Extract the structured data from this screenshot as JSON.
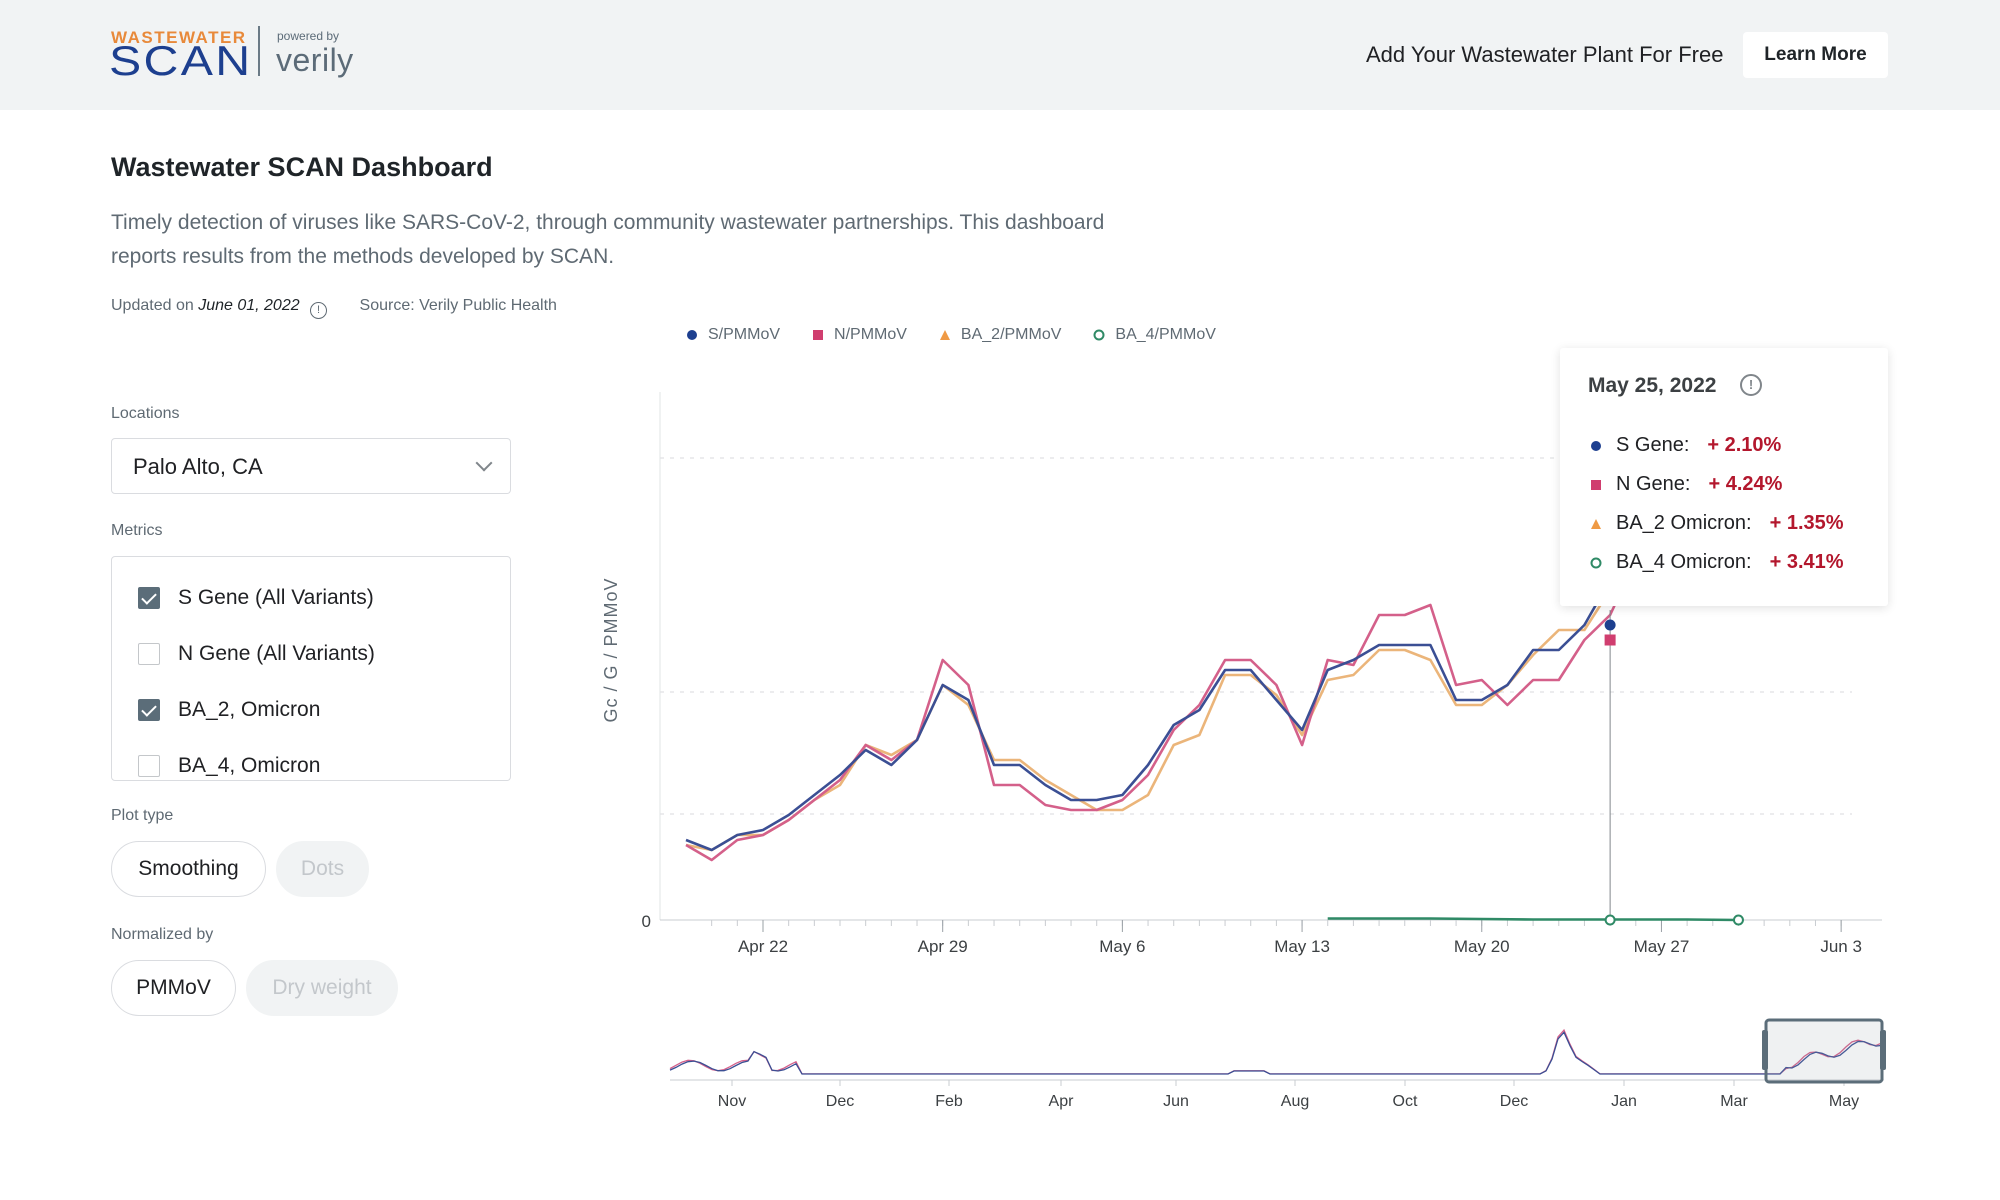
{
  "header": {
    "logo_top": "WASTEWATER",
    "logo_main": "SCAN",
    "powered_by": "powered by",
    "partner": "verily",
    "add_plant_text": "Add Your Wastewater Plant For Free",
    "learn_more_label": "Learn More"
  },
  "intro": {
    "title": "Wastewater SCAN Dashboard",
    "description": "Timely detection of viruses like SARS-CoV-2, through community wastewater partnerships. This dashboard reports results from the methods developed by SCAN.",
    "updated_prefix": "Updated on",
    "updated_date": "June 01, 2022",
    "source_prefix": "Source:",
    "source_link": "Verily Public Health"
  },
  "filters": {
    "locations_label": "Locations",
    "location_value": "Palo Alto, CA",
    "metrics_label": "Metrics",
    "metrics": [
      {
        "label": "S Gene (All Variants)",
        "checked": true
      },
      {
        "label": "N Gene (All Variants)",
        "checked": false
      },
      {
        "label": "BA_2, Omicron",
        "checked": true
      },
      {
        "label": "BA_4, Omicron",
        "checked": false
      }
    ],
    "plot_type_label": "Plot type",
    "plot_types": [
      "Smoothing",
      "Dots"
    ],
    "normalized_label": "Normalized by",
    "normalized_options": [
      "PMMoV",
      "Dry weight"
    ]
  },
  "colors": {
    "s_gene": "#3b4f94",
    "n_gene": "#d4608a",
    "ba2": "#ebb57a",
    "ba4": "#2f8a66",
    "positive": "#b3172d"
  },
  "chart_data": {
    "type": "line",
    "ylabel": "Gc / G / PMMoV",
    "y_ticks": [
      "0"
    ],
    "x_ticks": [
      "Apr 22",
      "Apr 29",
      "May  6",
      "May 13",
      "May 20",
      "May 27",
      "Jun  3"
    ],
    "x_day_start": "Apr 18",
    "legend": [
      "S/PMMoV",
      "N/PMMoV",
      "BA_2/PMMoV",
      "BA_4/PMMoV"
    ],
    "ylim": [
      0,
      100
    ],
    "series": [
      {
        "name": "S/PMMoV",
        "color": "#3b4f94",
        "x": [
          19,
          20,
          21,
          22,
          23,
          24,
          25,
          26,
          27,
          28,
          29,
          30,
          31,
          32,
          33,
          34,
          35,
          36,
          37,
          38,
          39,
          40,
          41,
          42,
          43,
          44,
          45,
          46,
          47,
          48,
          49,
          50,
          51,
          52,
          53,
          54,
          55,
          56,
          57,
          58
        ],
        "values": [
          16,
          14,
          17,
          18,
          21,
          25,
          29,
          34,
          31,
          36,
          47,
          44,
          31,
          31,
          27,
          24,
          24,
          25,
          31,
          39,
          42,
          50,
          50,
          44,
          38,
          50,
          52,
          55,
          55,
          55,
          44,
          44,
          47,
          54,
          54,
          59,
          68,
          74,
          78,
          80
        ]
      },
      {
        "name": "N/PMMoV",
        "color": "#d4608a",
        "x": [
          19,
          20,
          21,
          22,
          23,
          24,
          25,
          26,
          27,
          28,
          29,
          30,
          31,
          32,
          33,
          34,
          35,
          36,
          37,
          38,
          39,
          40,
          41,
          42,
          43,
          44,
          45,
          46,
          47,
          48,
          49,
          50,
          51,
          52,
          53,
          54,
          55,
          56,
          57,
          58
        ],
        "values": [
          15,
          12,
          16,
          17,
          20,
          24,
          28,
          35,
          32,
          36,
          52,
          47,
          27,
          27,
          23,
          22,
          22,
          24,
          29,
          38,
          43,
          52,
          52,
          47,
          35,
          52,
          51,
          61,
          61,
          63,
          47,
          48,
          43,
          48,
          48,
          56,
          61,
          72,
          78,
          82
        ]
      },
      {
        "name": "BA_2/PMMoV",
        "color": "#ebb57a",
        "x": [
          19,
          20,
          21,
          22,
          23,
          24,
          25,
          26,
          27,
          28,
          29,
          30,
          31,
          32,
          33,
          34,
          35,
          36,
          37,
          38,
          39,
          40,
          41,
          42,
          43,
          44,
          45,
          46,
          47,
          48,
          49,
          50,
          51,
          52,
          53,
          54,
          55,
          56,
          57,
          58
        ],
        "values": [
          15,
          14,
          17,
          17,
          20,
          24,
          27,
          35,
          33,
          36,
          47,
          43,
          32,
          32,
          28,
          25,
          22,
          22,
          25,
          35,
          37,
          49,
          49,
          45,
          37,
          48,
          49,
          54,
          54,
          52,
          43,
          43,
          47,
          53,
          58,
          58,
          66,
          72,
          78,
          84
        ]
      },
      {
        "name": "BA_4/PMMoV",
        "color": "#2f8a66",
        "x": [
          44,
          46,
          48,
          50,
          52,
          54,
          56,
          58,
          60
        ],
        "values": [
          0.3,
          0.3,
          0.3,
          0.2,
          0.1,
          0.1,
          0.1,
          0.1,
          0.0
        ]
      }
    ],
    "overview": {
      "x_ticks": [
        "Nov",
        "Dec",
        "Feb",
        "Apr",
        "Jun",
        "Aug",
        "Oct",
        "Dec",
        "Jan",
        "Mar",
        "May"
      ]
    }
  },
  "tooltip": {
    "date": "May 25, 2022",
    "rows": [
      {
        "label": "S Gene:",
        "value": "+ 2.10%",
        "marker": "circle",
        "color": "#1d3f8f"
      },
      {
        "label": "N Gene:",
        "value": "+ 4.24%",
        "marker": "square",
        "color": "#d03e6f"
      },
      {
        "label": "BA_2 Omicron:",
        "value": "+ 1.35%",
        "marker": "triangle",
        "color": "#ef9a45"
      },
      {
        "label": "BA_4 Omicron:",
        "value": "+ 3.41%",
        "marker": "ring",
        "color": "#2f8a66"
      }
    ]
  }
}
